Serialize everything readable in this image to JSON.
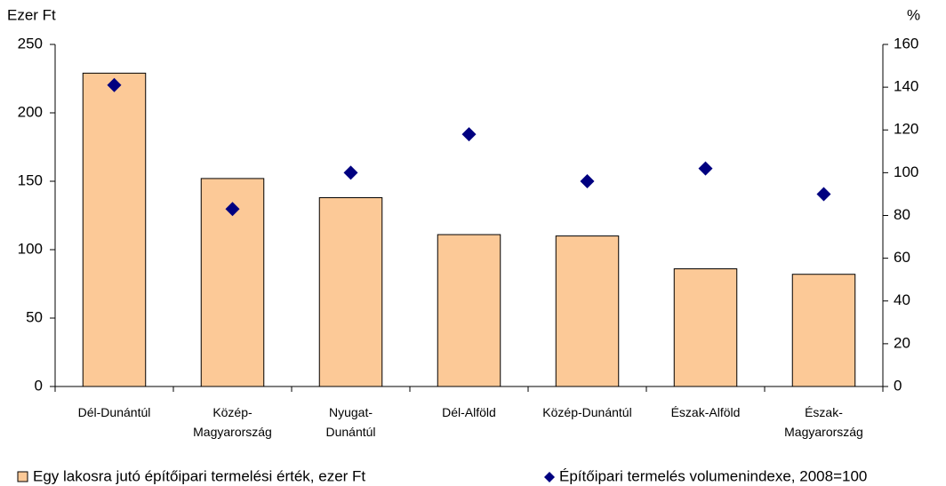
{
  "chart_data": {
    "type": "bar",
    "y_label": "Ezer Ft",
    "y2_label": "%",
    "categories": [
      "Dél-Dunántúl",
      "Közép-\nMagyarország",
      "Nyugat-\nDunántúl",
      "Dél-Alföld",
      "Közép-Dunántúl",
      "Észak-Alföld",
      "Észak-\nMagyarország"
    ],
    "series": [
      {
        "name": "Egy lakosra jutó építőipari termelési érték, ezer Ft",
        "type": "bar",
        "color": "#fcc997",
        "values": [
          229,
          152,
          138,
          111,
          110,
          86,
          82
        ]
      },
      {
        "name": "Építőipari termelés volumenindexe, 2008=100",
        "type": "scatter",
        "axis": "y2",
        "color": "#000080",
        "values": [
          141,
          83,
          100,
          118,
          96,
          102,
          90
        ]
      }
    ],
    "ylim": [
      0,
      250
    ],
    "yticks": [
      0,
      50,
      100,
      150,
      200,
      250
    ],
    "y2lim": [
      0,
      160
    ],
    "y2ticks": [
      0,
      20,
      40,
      60,
      80,
      100,
      120,
      140,
      160
    ],
    "legend": "bottom"
  }
}
